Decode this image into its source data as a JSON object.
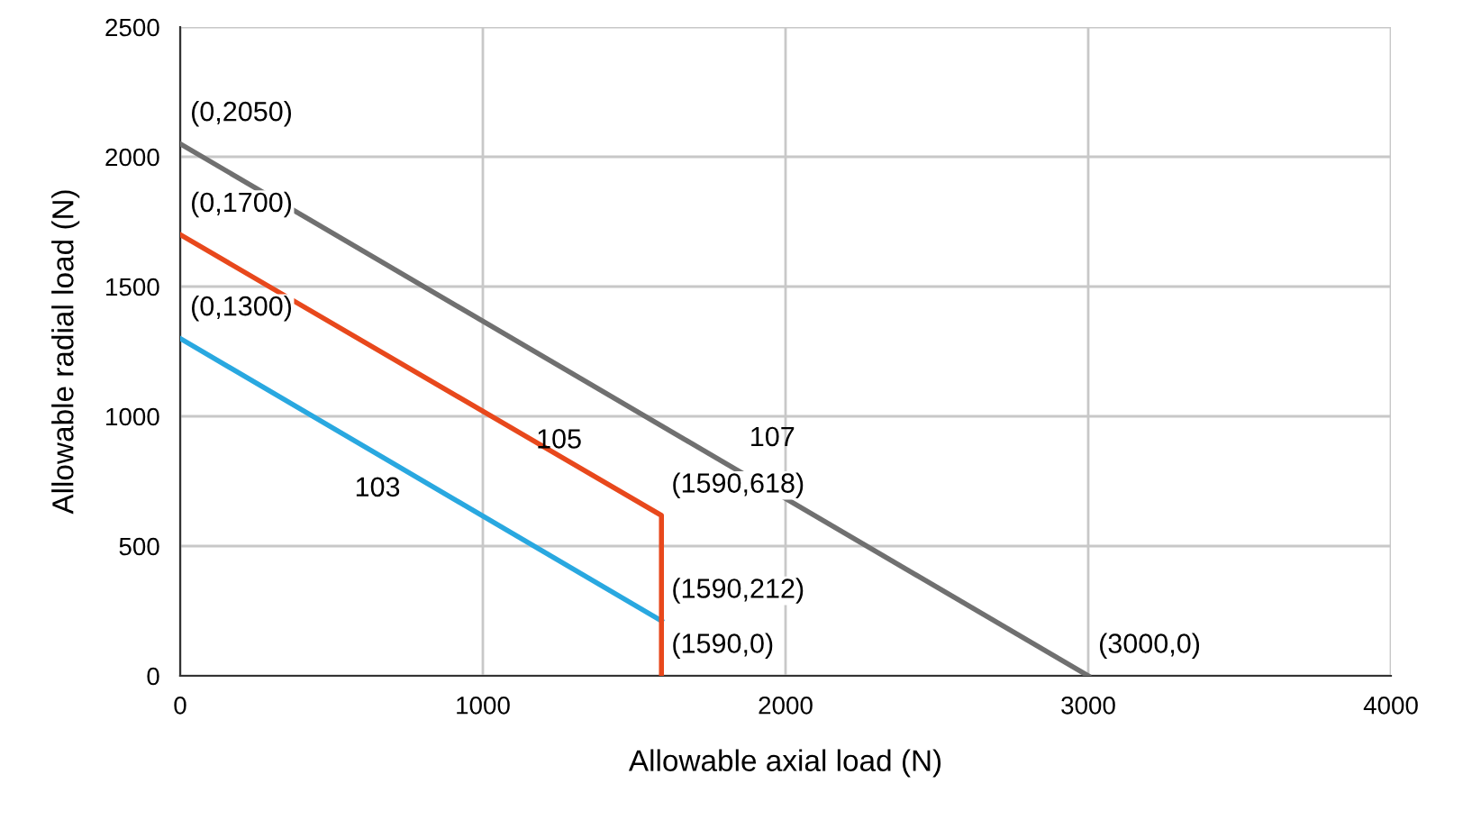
{
  "chart_data": {
    "type": "line",
    "xlabel": "Allowable axial load (N)",
    "ylabel": "Allowable radial load (N)",
    "series": [
      {
        "name": "103",
        "color": "#29a8e0",
        "x": [
          0,
          1590
        ],
        "values": [
          1300,
          212
        ]
      },
      {
        "name": "105",
        "color": "#e8481c",
        "x": [
          0,
          1590,
          1590
        ],
        "values": [
          1700,
          618,
          0
        ]
      },
      {
        "name": "107",
        "color": "#707070",
        "x": [
          0,
          3000
        ],
        "values": [
          2050,
          0
        ]
      }
    ],
    "annotations": [
      {
        "text": "(0,2050)",
        "x": 0,
        "y": 2050
      },
      {
        "text": "(0,1700)",
        "x": 0,
        "y": 1700
      },
      {
        "text": "(0,1300)",
        "x": 0,
        "y": 1300
      },
      {
        "text": "(1590,618)",
        "x": 1590,
        "y": 618
      },
      {
        "text": "(1590,212)",
        "x": 1590,
        "y": 212
      },
      {
        "text": "(1590,0)",
        "x": 1590,
        "y": 0
      },
      {
        "text": "(3000,0)",
        "x": 3000,
        "y": 0
      }
    ],
    "xlim": [
      0,
      4000
    ],
    "xticks": [
      0,
      1000,
      2000,
      3000,
      4000
    ],
    "ylim": [
      0,
      2500
    ],
    "yticks": [
      0,
      500,
      1000,
      1500,
      2000,
      2500
    ],
    "grid": true,
    "legend": false,
    "marker": "none",
    "line_style": "solid"
  }
}
